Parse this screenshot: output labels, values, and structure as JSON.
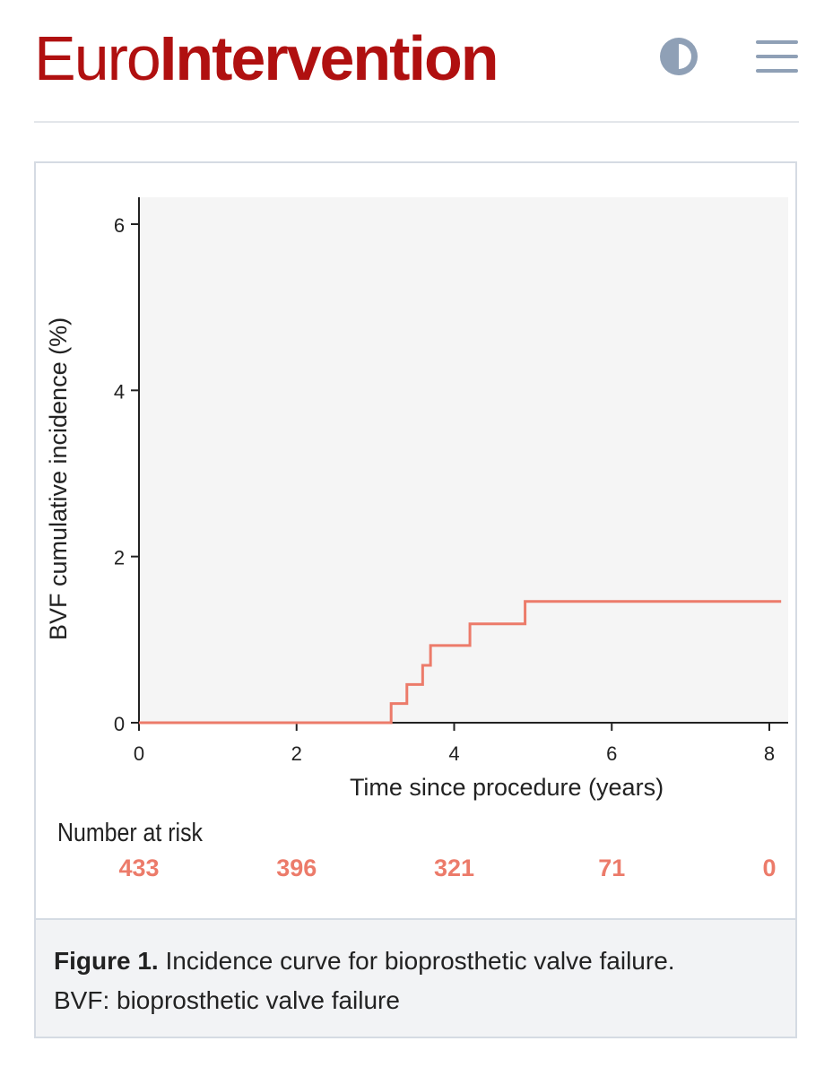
{
  "header": {
    "logo_light": "Euro",
    "logo_bold": "Intervention",
    "brand_color": "#b01010",
    "contrast_icon": "contrast-icon",
    "menu_icon": "menu-icon"
  },
  "chart_data": {
    "type": "line",
    "step": true,
    "title": "",
    "xlabel": "Time since procedure (years)",
    "ylabel": "BVF cumulative incidence (%)",
    "xlim": [
      0,
      8.2
    ],
    "ylim": [
      0,
      6.3
    ],
    "x_ticks": [
      0,
      2,
      4,
      6,
      8
    ],
    "y_ticks": [
      0,
      2,
      4,
      6
    ],
    "grid": false,
    "series": [
      {
        "name": "BVF",
        "color": "#ec7b6a",
        "x": [
          0,
          3.2,
          3.4,
          3.6,
          3.7,
          4.2,
          4.9,
          8.15
        ],
        "y": [
          0.0,
          0.23,
          0.46,
          0.69,
          0.93,
          1.19,
          1.46,
          1.46
        ]
      }
    ],
    "risk_table": {
      "title": "Number at risk",
      "times": [
        0,
        2,
        4,
        6,
        8
      ],
      "values": [
        "433",
        "396",
        "321",
        "71",
        "0"
      ]
    }
  },
  "caption": {
    "label": "Figure 1.",
    "text": " Incidence curve for bioprosthetic valve failure.",
    "abbreviation": "BVF: bioprosthetic valve failure"
  }
}
